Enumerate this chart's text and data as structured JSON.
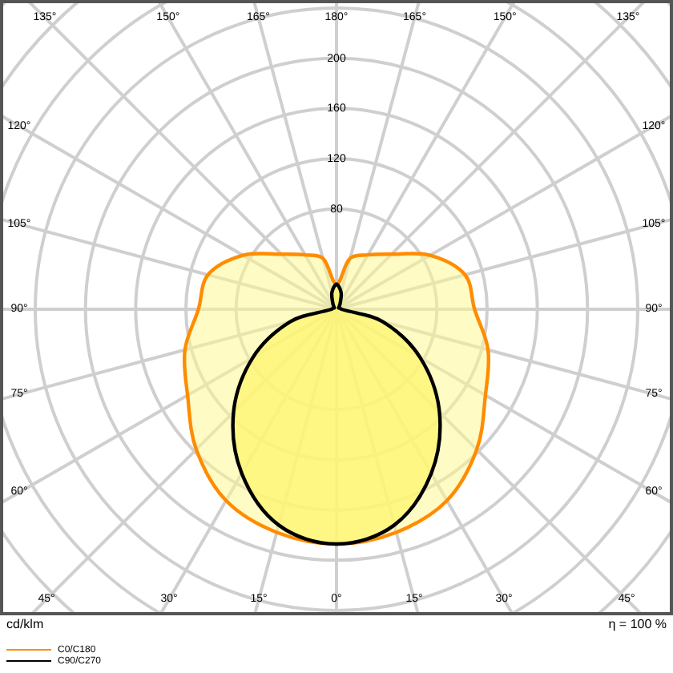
{
  "chart_data": {
    "type": "radar",
    "ylabel": "cd/klm",
    "annotations": [
      "η = 100 %"
    ],
    "categories": [
      "180°",
      "165°",
      "150°",
      "135°",
      "120°",
      "105°",
      "90°",
      "75°",
      "60°",
      "45°",
      "30°",
      "15°",
      "0°",
      "15°",
      "30°",
      "45°",
      "60°",
      "75°",
      "90°",
      "105°",
      "120°",
      "135°",
      "150°",
      "165°"
    ],
    "series": [
      {
        "name": "C0/C180",
        "color": "#ff8c00",
        "values": [
          20,
          42,
          50,
          62,
          86,
          106,
          110,
          125,
          137,
          158,
          176,
          184,
          187,
          184,
          176,
          158,
          137,
          125,
          110,
          106,
          86,
          62,
          50,
          42
        ]
      },
      {
        "name": "C90/C270",
        "color": "#000000",
        "values": [
          20,
          14,
          6,
          3,
          2,
          3,
          4,
          38,
          77,
          116,
          151,
          178,
          187,
          178,
          151,
          116,
          77,
          38,
          4,
          3,
          2,
          3,
          6,
          14
        ]
      }
    ],
    "ylim": [
      0,
      360
    ],
    "yticks": [
      80,
      120,
      160,
      200
    ],
    "grid": true,
    "legend": "bottom left",
    "marker": "none",
    "line_style": "solid"
  }
}
